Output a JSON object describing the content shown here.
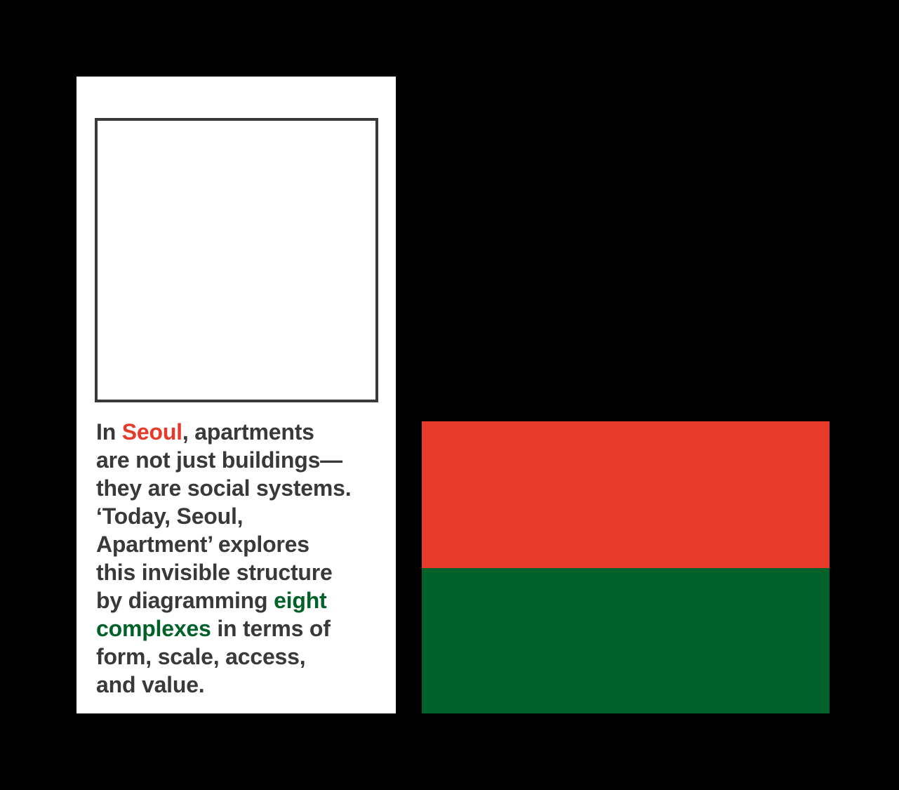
{
  "colors": {
    "background": "#000000",
    "card": "#ffffff",
    "frame_border": "#3a3839",
    "text": "#3b3839",
    "accent_red": "#e63a2b",
    "accent_green": "#006129"
  },
  "description": {
    "lines": [
      {
        "before": "In ",
        "highlight": "Seoul",
        "after": ", apartments"
      },
      {
        "text": "are not just buildings—"
      },
      {
        "text": "they are social systems."
      },
      {
        "text": "‘Today, Seoul,"
      },
      {
        "text": "Apartment’ explores"
      },
      {
        "text": "this invisible structure"
      },
      {
        "before": "by diagramming ",
        "highlight": "eight"
      },
      {
        "highlight": "complexes",
        "after": " in terms of"
      },
      {
        "text": "form, scale, access,"
      },
      {
        "text": "and value."
      }
    ]
  }
}
